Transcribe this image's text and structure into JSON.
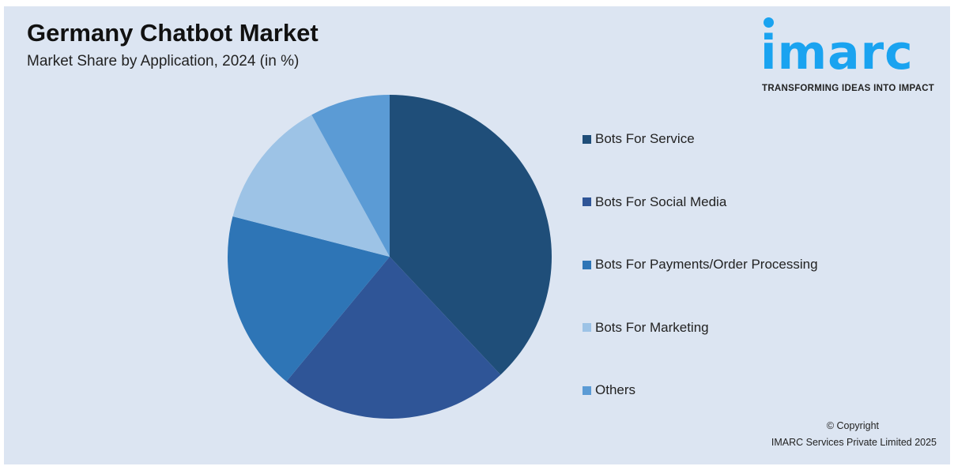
{
  "title": "Germany Chatbot Market",
  "subtitle": "Market Share by Application, 2024 (in %)",
  "logo": {
    "word": "imarc",
    "tagline": "TRANSFORMING IDEAS INTO IMPACT",
    "color": "#1aa3f0"
  },
  "footer": {
    "copyright": "© Copyright",
    "company": "IMARC Services Private Limited 2025"
  },
  "chart_data": {
    "type": "pie",
    "title": "Germany Chatbot Market",
    "subtitle": "Market Share by Application, 2024 (in %)",
    "start_angle": "12 o'clock, clockwise",
    "legend_position": "right",
    "categories": [
      "Bots For Service",
      "Bots For Social Media",
      "Bots For Payments/Order Processing",
      "Bots For Marketing",
      "Others"
    ],
    "values": [
      38,
      23,
      18,
      13,
      8
    ],
    "colors": [
      "#1f4e79",
      "#2f5597",
      "#2e75b6",
      "#9dc3e6",
      "#5b9bd5"
    ]
  }
}
